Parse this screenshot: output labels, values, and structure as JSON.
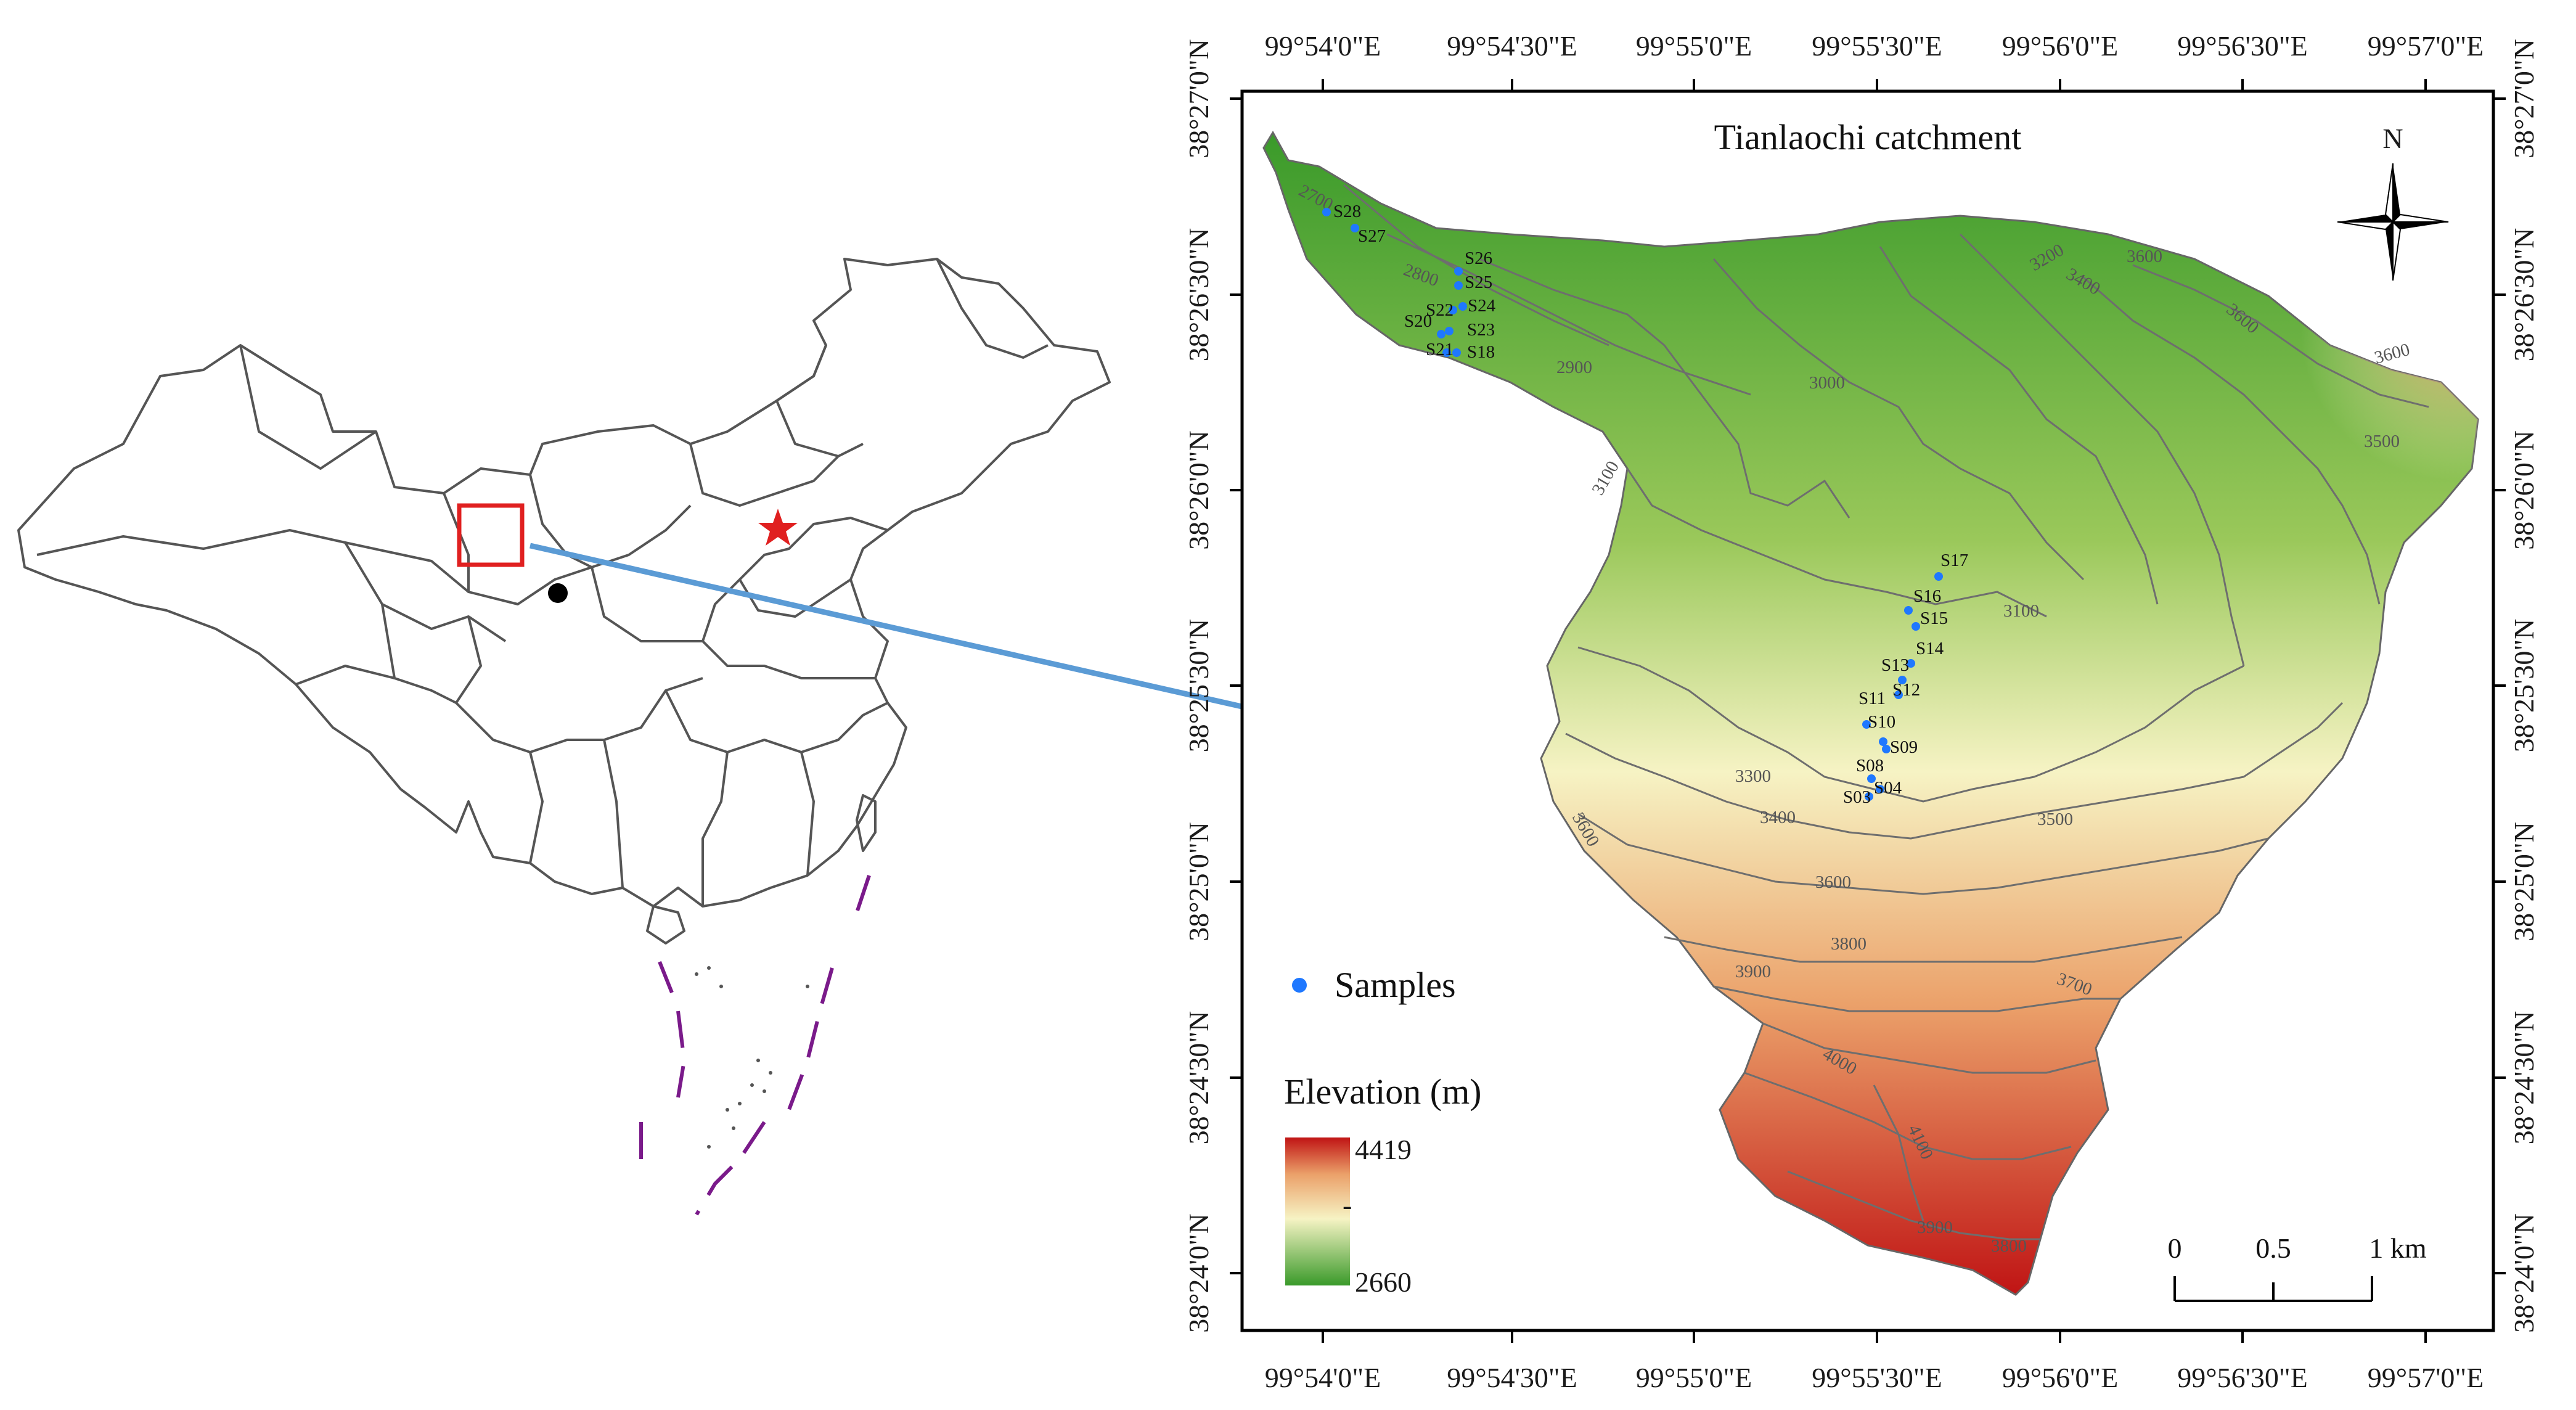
{
  "catchment_title": "Tianlaochi catchment",
  "north_label": "N",
  "legend": {
    "samples_label": "Samples",
    "elevation_title": "Elevation (m)",
    "elev_max": "4419",
    "elev_min": "2660",
    "elev_mid_mark": "-"
  },
  "scale_bar": {
    "ticks": [
      "0",
      "0.5",
      "1 km"
    ]
  },
  "lon_labels": [
    "99°54'0\"E",
    "99°54'30\"E",
    "99°55'0\"E",
    "99°55'30\"E",
    "99°56'0\"E",
    "99°56'30\"E",
    "99°57'0\"E"
  ],
  "lat_labels": [
    "38°27'0\"N",
    "38°26'30\"N",
    "38°26'0\"N",
    "38°25'30\"N",
    "38°25'0\"N",
    "38°24'30\"N",
    "38°24'0\"N"
  ],
  "samples": [
    {
      "id": "S28"
    },
    {
      "id": "S27"
    },
    {
      "id": "S26"
    },
    {
      "id": "S25"
    },
    {
      "id": "S24"
    },
    {
      "id": "S22"
    },
    {
      "id": "S23"
    },
    {
      "id": "S20"
    },
    {
      "id": "S21"
    },
    {
      "id": "S18"
    },
    {
      "id": "S17"
    },
    {
      "id": "S16"
    },
    {
      "id": "S15"
    },
    {
      "id": "S14"
    },
    {
      "id": "S13"
    },
    {
      "id": "S12"
    },
    {
      "id": "S11"
    },
    {
      "id": "S10"
    },
    {
      "id": "S09"
    },
    {
      "id": "S08"
    },
    {
      "id": "S04"
    },
    {
      "id": "S03"
    }
  ],
  "contours": [
    "2700",
    "2800",
    "2900",
    "3000",
    "3100",
    "3100",
    "3200",
    "3300",
    "3400",
    "3400",
    "3500",
    "3500",
    "3600",
    "3600",
    "3600",
    "3600",
    "3600",
    "3700",
    "3800",
    "3900",
    "4000",
    "4100",
    "3900",
    "3800"
  ],
  "colors": {
    "low": "#3a9a2a",
    "mid": "#f6f3c4",
    "high": "#c01414",
    "sample_dot": "#1f78ff",
    "arrow": "#5b9bd5",
    "locator_box": "#e02020",
    "capital_star": "#e02020",
    "dashed_boundary": "#7a1a8a",
    "contour_line": "#6e6e6e"
  }
}
